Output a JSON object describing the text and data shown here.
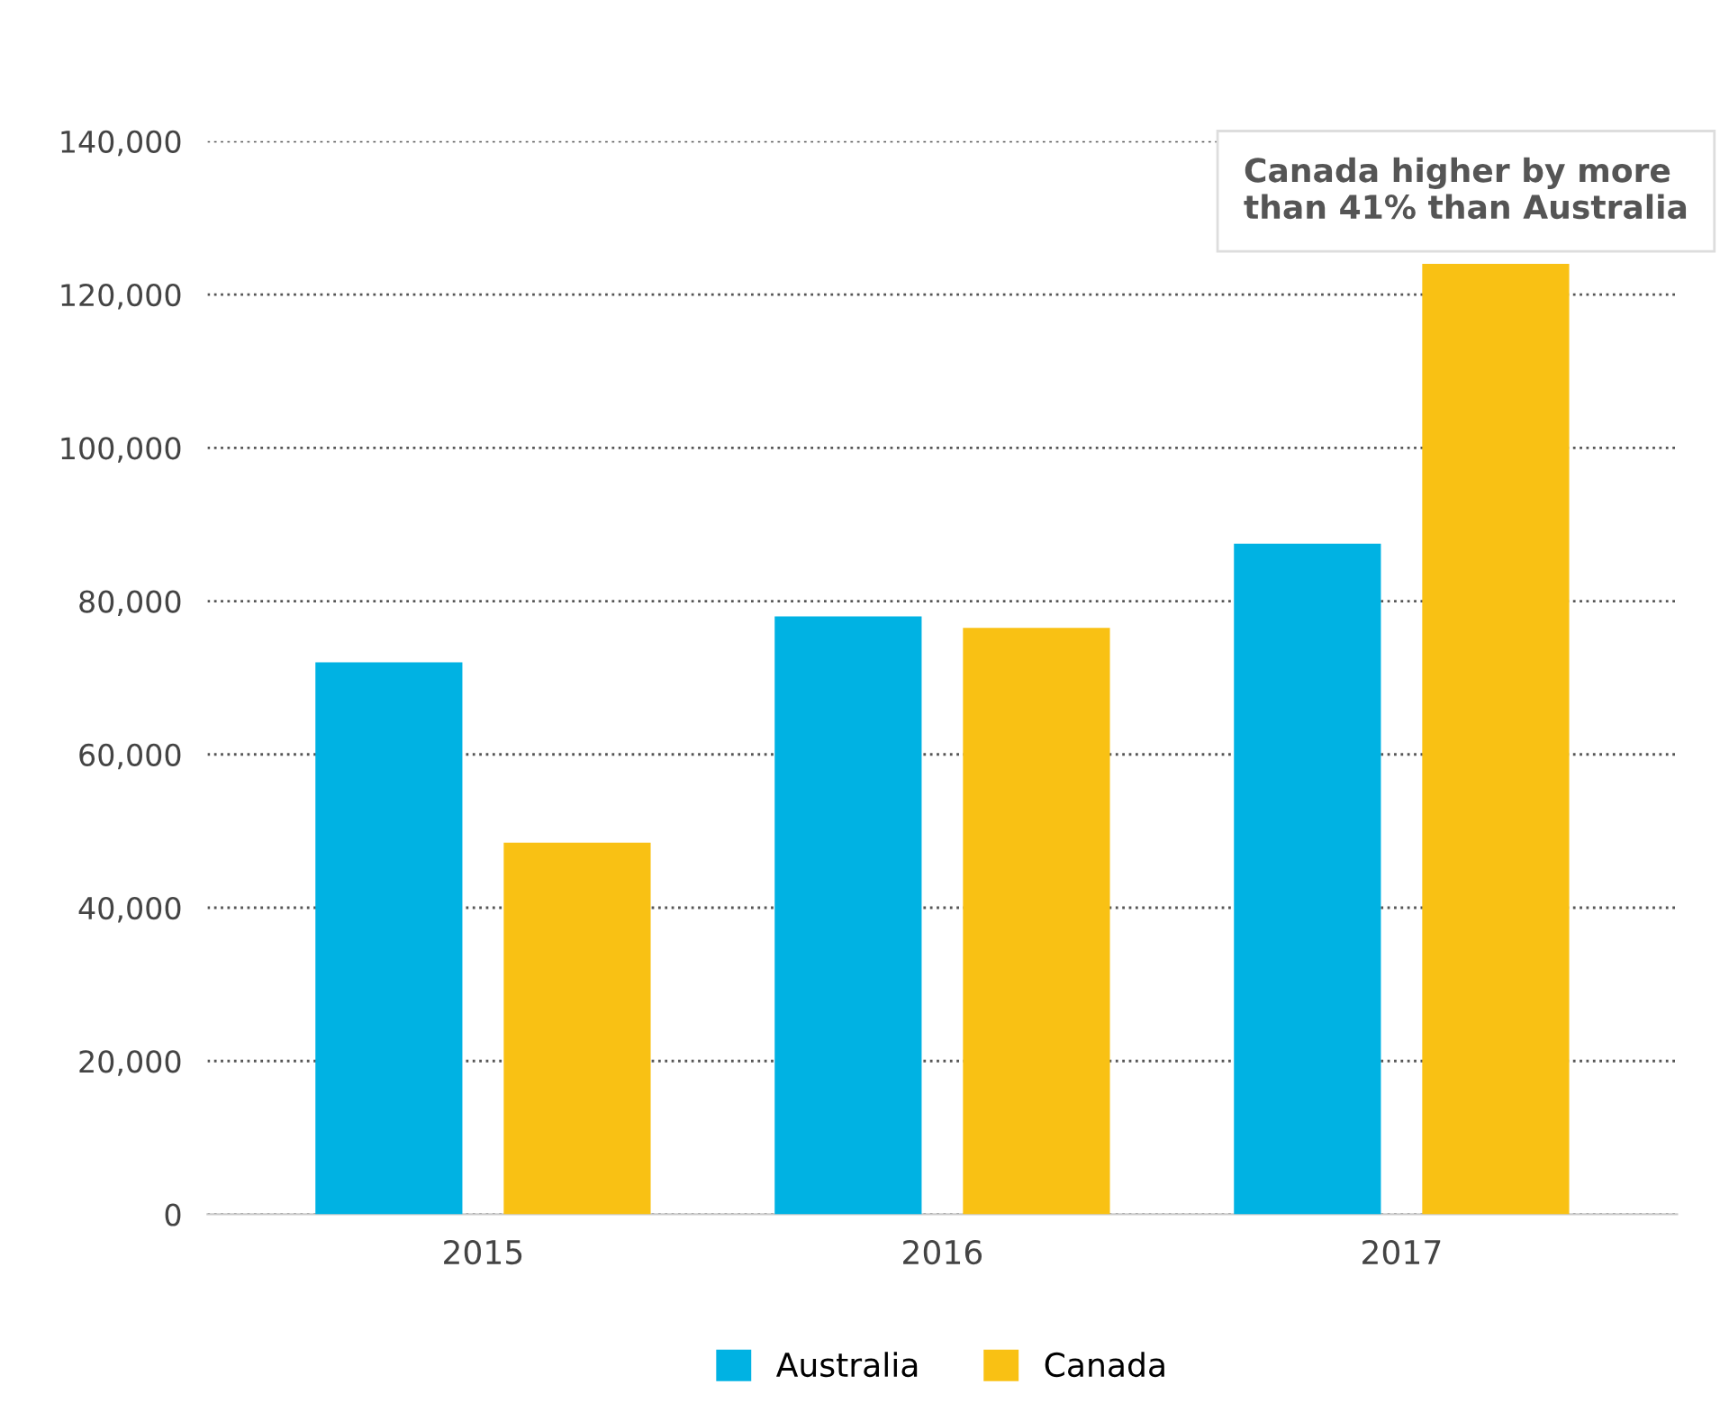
{
  "chart_data": {
    "type": "bar",
    "categories": [
      "2015",
      "2016",
      "2017"
    ],
    "series": [
      {
        "name": "Australia",
        "color": "#00b2e3",
        "values": [
          72000,
          78000,
          87500
        ]
      },
      {
        "name": "Canada",
        "color": "#f9c114",
        "values": [
          48500,
          76500,
          124000
        ]
      }
    ],
    "ylim": [
      0,
      140000
    ],
    "yticks": [
      {
        "value": 0,
        "label": "0"
      },
      {
        "value": 20000,
        "label": "20,000"
      },
      {
        "value": 40000,
        "label": "40,000"
      },
      {
        "value": 60000,
        "label": "60,000"
      },
      {
        "value": 80000,
        "label": "80,000"
      },
      {
        "value": 100000,
        "label": "100,000"
      },
      {
        "value": 120000,
        "label": "120,000"
      },
      {
        "value": 140000,
        "label": "140,000"
      }
    ],
    "grid": "y",
    "legend": "bottom",
    "annotations": [
      "Canada higher by more than 41% than Australia"
    ]
  }
}
